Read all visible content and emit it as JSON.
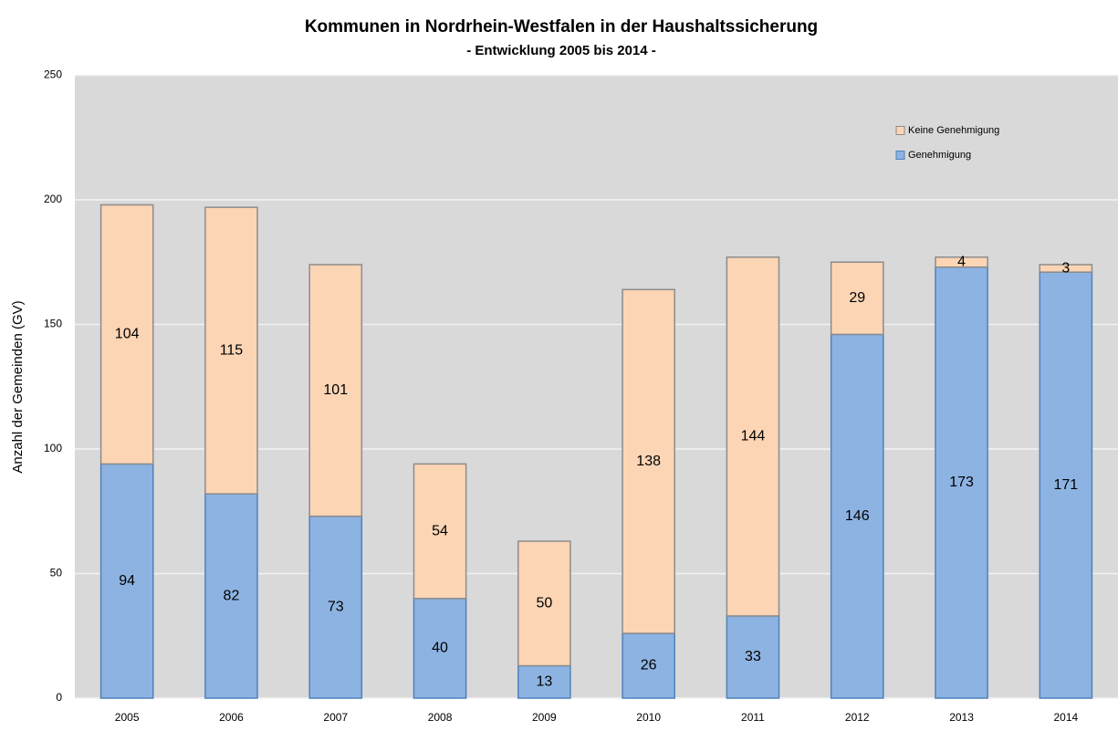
{
  "chart_data": {
    "type": "stacked_bar",
    "title": "Kommunen in Nordrhein-Westfalen in der Haushaltssicherung",
    "subtitle": "- Entwicklung 2005 bis 2014 -",
    "y_label": "Anzahl der Gemeinden (GV)",
    "categories": [
      "2005",
      "2006",
      "2007",
      "2008",
      "2009",
      "2010",
      "2011",
      "2012",
      "2013",
      "2014"
    ],
    "series": [
      {
        "name": "Genehmigung",
        "color": "#8db3e2",
        "border": "#4f81bd",
        "values": [
          94,
          82,
          73,
          40,
          13,
          26,
          33,
          146,
          173,
          171
        ]
      },
      {
        "name": "Keine Genehmigung",
        "color": "#fcd5b4",
        "border": "#8c8c8c",
        "values": [
          104,
          115,
          101,
          54,
          50,
          138,
          144,
          29,
          4,
          3
        ]
      }
    ],
    "ylim": [
      0,
      250
    ],
    "yticks": [
      0,
      50,
      100,
      150,
      200,
      250
    ],
    "grid": true,
    "legend": "upper right"
  }
}
